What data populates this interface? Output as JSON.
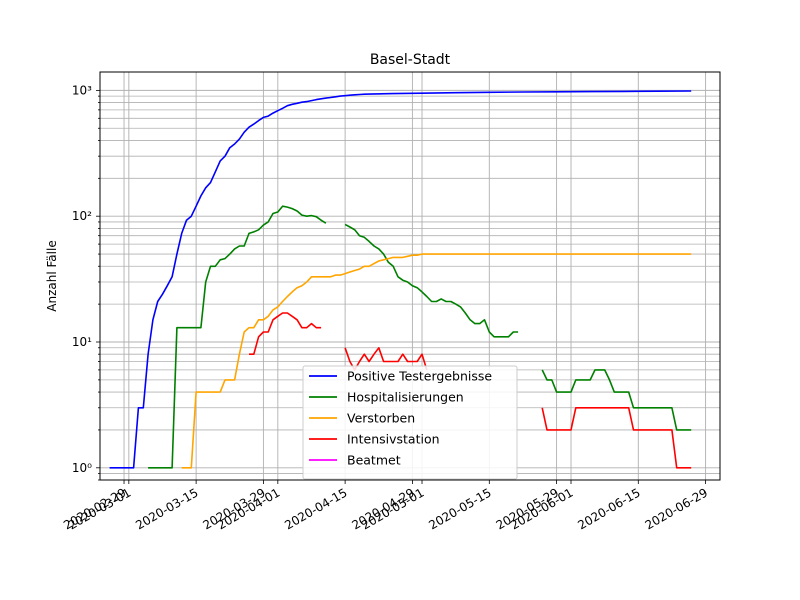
{
  "chart_data": {
    "type": "line",
    "title": "Basel-Stadt",
    "xlabel": "",
    "ylabel": "Anzahl Fälle",
    "yscale": "log",
    "ylim": [
      0.8,
      1400
    ],
    "xlim": [
      "2020-02-24",
      "2020-07-02"
    ],
    "grid": true,
    "legend_position": "lower center",
    "x_ticks": [
      "2020-02-29",
      "2020-03-01",
      "2020-03-15",
      "2020-03-29",
      "2020-04-01",
      "2020-04-15",
      "2020-04-29",
      "2020-05-01",
      "2020-05-15",
      "2020-05-29",
      "2020-06-01",
      "2020-06-15",
      "2020-06-29"
    ],
    "y_ticks": [
      {
        "value": 1,
        "label": "10⁰"
      },
      {
        "value": 10,
        "label": "10¹"
      },
      {
        "value": 100,
        "label": "10²"
      },
      {
        "value": 1000,
        "label": "10³"
      }
    ],
    "series": [
      {
        "name": "Positive Testergebnisse",
        "color": "#0000ff",
        "points": [
          [
            "2020-02-26",
            1
          ],
          [
            "2020-02-27",
            1
          ],
          [
            "2020-02-28",
            1
          ],
          [
            "2020-02-29",
            1
          ],
          [
            "2020-03-01",
            1
          ],
          [
            "2020-03-02",
            1
          ],
          [
            "2020-03-03",
            3
          ],
          [
            "2020-03-04",
            3
          ],
          [
            "2020-03-05",
            8
          ],
          [
            "2020-03-06",
            15
          ],
          [
            "2020-03-07",
            21
          ],
          [
            "2020-03-08",
            24
          ],
          [
            "2020-03-09",
            28
          ],
          [
            "2020-03-10",
            33
          ],
          [
            "2020-03-11",
            50
          ],
          [
            "2020-03-12",
            73
          ],
          [
            "2020-03-13",
            93
          ],
          [
            "2020-03-14",
            100
          ],
          [
            "2020-03-15",
            120
          ],
          [
            "2020-03-16",
            145
          ],
          [
            "2020-03-17",
            168
          ],
          [
            "2020-03-18",
            185
          ],
          [
            "2020-03-19",
            225
          ],
          [
            "2020-03-20",
            275
          ],
          [
            "2020-03-21",
            300
          ],
          [
            "2020-03-22",
            350
          ],
          [
            "2020-03-23",
            375
          ],
          [
            "2020-03-24",
            410
          ],
          [
            "2020-03-25",
            465
          ],
          [
            "2020-03-26",
            510
          ],
          [
            "2020-03-27",
            540
          ],
          [
            "2020-03-28",
            575
          ],
          [
            "2020-03-29",
            610
          ],
          [
            "2020-03-30",
            625
          ],
          [
            "2020-03-31",
            660
          ],
          [
            "2020-04-01",
            690
          ],
          [
            "2020-04-02",
            720
          ],
          [
            "2020-04-03",
            755
          ],
          [
            "2020-04-04",
            775
          ],
          [
            "2020-04-05",
            790
          ],
          [
            "2020-04-06",
            805
          ],
          [
            "2020-04-07",
            815
          ],
          [
            "2020-04-08",
            830
          ],
          [
            "2020-04-09",
            845
          ],
          [
            "2020-04-10",
            858
          ],
          [
            "2020-04-11",
            868
          ],
          [
            "2020-04-12",
            878
          ],
          [
            "2020-04-13",
            890
          ],
          [
            "2020-04-14",
            900
          ],
          [
            "2020-04-15",
            908
          ],
          [
            "2020-04-16",
            915
          ],
          [
            "2020-04-17",
            922
          ],
          [
            "2020-04-18",
            928
          ],
          [
            "2020-04-19",
            932
          ],
          [
            "2020-04-20",
            935
          ],
          [
            "2020-04-25",
            942
          ],
          [
            "2020-05-01",
            950
          ],
          [
            "2020-05-08",
            958
          ],
          [
            "2020-05-15",
            965
          ],
          [
            "2020-05-22",
            970
          ],
          [
            "2020-05-29",
            974
          ],
          [
            "2020-06-05",
            978
          ],
          [
            "2020-06-12",
            982
          ],
          [
            "2020-06-19",
            985
          ],
          [
            "2020-06-26",
            988
          ]
        ]
      },
      {
        "name": "Hospitalisierungen",
        "color": "#008000",
        "points": [
          [
            "2020-03-05",
            1
          ],
          [
            "2020-03-10",
            1
          ],
          [
            "2020-03-11",
            13
          ],
          [
            "2020-03-16",
            13
          ],
          [
            "2020-03-17",
            30
          ],
          [
            "2020-03-18",
            40
          ],
          [
            "2020-03-19",
            40
          ],
          [
            "2020-03-20",
            45
          ],
          [
            "2020-03-21",
            46
          ],
          [
            "2020-03-22",
            50
          ],
          [
            "2020-03-23",
            55
          ],
          [
            "2020-03-24",
            58
          ],
          [
            "2020-03-25",
            58
          ],
          [
            "2020-03-26",
            73
          ],
          [
            "2020-03-27",
            75
          ],
          [
            "2020-03-28",
            78
          ],
          [
            "2020-03-29",
            85
          ],
          [
            "2020-03-30",
            90
          ],
          [
            "2020-03-31",
            105
          ],
          [
            "2020-04-01",
            108
          ],
          [
            "2020-04-02",
            120
          ],
          [
            "2020-04-03",
            118
          ],
          [
            "2020-04-04",
            115
          ],
          [
            "2020-04-05",
            110
          ],
          [
            "2020-04-06",
            102
          ],
          [
            "2020-04-07",
            100
          ],
          [
            "2020-04-08",
            101
          ],
          [
            "2020-04-09",
            99
          ],
          [
            "2020-04-10",
            93
          ],
          [
            "2020-04-11",
            88
          ],
          null,
          [
            "2020-04-15",
            86
          ],
          [
            "2020-04-16",
            82
          ],
          [
            "2020-04-17",
            78
          ],
          [
            "2020-04-18",
            70
          ],
          [
            "2020-04-19",
            68
          ],
          [
            "2020-04-20",
            63
          ],
          [
            "2020-04-21",
            58
          ],
          [
            "2020-04-22",
            55
          ],
          [
            "2020-04-23",
            50
          ],
          [
            "2020-04-24",
            43
          ],
          [
            "2020-04-25",
            40
          ],
          [
            "2020-04-26",
            33
          ],
          [
            "2020-04-27",
            31
          ],
          [
            "2020-04-28",
            30
          ],
          [
            "2020-04-29",
            28
          ],
          [
            "2020-04-30",
            27
          ],
          [
            "2020-05-01",
            25
          ],
          [
            "2020-05-02",
            23
          ],
          [
            "2020-05-03",
            21
          ],
          [
            "2020-05-04",
            21
          ],
          [
            "2020-05-05",
            22
          ],
          [
            "2020-05-06",
            21
          ],
          [
            "2020-05-07",
            21
          ],
          [
            "2020-05-08",
            20
          ],
          [
            "2020-05-09",
            19
          ],
          [
            "2020-05-10",
            17
          ],
          [
            "2020-05-11",
            15
          ],
          [
            "2020-05-12",
            14
          ],
          [
            "2020-05-13",
            14
          ],
          [
            "2020-05-14",
            15
          ],
          [
            "2020-05-15",
            12
          ],
          [
            "2020-05-16",
            11
          ],
          [
            "2020-05-17",
            11
          ],
          [
            "2020-05-18",
            11
          ],
          [
            "2020-05-19",
            11
          ],
          [
            "2020-05-20",
            12
          ],
          [
            "2020-05-21",
            12
          ],
          null,
          [
            "2020-05-26",
            6
          ],
          [
            "2020-05-27",
            5
          ],
          [
            "2020-05-28",
            5
          ],
          [
            "2020-05-29",
            4
          ],
          [
            "2020-05-30",
            4
          ],
          [
            "2020-05-31",
            4
          ],
          [
            "2020-06-01",
            4
          ],
          [
            "2020-06-02",
            5
          ],
          [
            "2020-06-03",
            5
          ],
          [
            "2020-06-04",
            5
          ],
          [
            "2020-06-05",
            5
          ],
          [
            "2020-06-06",
            6
          ],
          [
            "2020-06-07",
            6
          ],
          [
            "2020-06-08",
            6
          ],
          [
            "2020-06-09",
            5
          ],
          [
            "2020-06-10",
            4
          ],
          [
            "2020-06-11",
            4
          ],
          [
            "2020-06-12",
            4
          ],
          [
            "2020-06-13",
            4
          ],
          [
            "2020-06-14",
            3
          ],
          [
            "2020-06-15",
            3
          ],
          [
            "2020-06-16",
            3
          ],
          [
            "2020-06-20",
            3
          ],
          [
            "2020-06-22",
            3
          ],
          [
            "2020-06-23",
            2
          ],
          [
            "2020-06-24",
            2
          ],
          [
            "2020-06-25",
            2
          ],
          [
            "2020-06-26",
            2
          ]
        ]
      },
      {
        "name": "Verstorben",
        "color": "#ffa500",
        "points": [
          [
            "2020-03-12",
            1
          ],
          [
            "2020-03-14",
            1
          ],
          [
            "2020-03-15",
            4
          ],
          [
            "2020-03-20",
            4
          ],
          [
            "2020-03-21",
            5
          ],
          [
            "2020-03-23",
            5
          ],
          [
            "2020-03-24",
            8
          ],
          [
            "2020-03-25",
            12
          ],
          [
            "2020-03-26",
            13
          ],
          [
            "2020-03-27",
            13
          ],
          [
            "2020-03-28",
            15
          ],
          [
            "2020-03-29",
            15
          ],
          [
            "2020-03-30",
            16
          ],
          [
            "2020-03-31",
            18
          ],
          [
            "2020-04-01",
            19
          ],
          [
            "2020-04-02",
            21
          ],
          [
            "2020-04-03",
            23
          ],
          [
            "2020-04-04",
            25
          ],
          [
            "2020-04-05",
            27
          ],
          [
            "2020-04-06",
            28
          ],
          [
            "2020-04-07",
            30
          ],
          [
            "2020-04-08",
            33
          ],
          [
            "2020-04-10",
            33
          ],
          [
            "2020-04-12",
            33
          ],
          [
            "2020-04-13",
            34
          ],
          [
            "2020-04-14",
            34
          ],
          [
            "2020-04-15",
            35
          ],
          [
            "2020-04-16",
            36
          ],
          [
            "2020-04-17",
            37
          ],
          [
            "2020-04-18",
            38
          ],
          [
            "2020-04-19",
            40
          ],
          [
            "2020-04-20",
            40
          ],
          [
            "2020-04-21",
            42
          ],
          [
            "2020-04-22",
            44
          ],
          [
            "2020-04-23",
            45
          ],
          [
            "2020-04-24",
            46
          ],
          [
            "2020-04-25",
            47
          ],
          [
            "2020-04-26",
            47
          ],
          [
            "2020-04-27",
            47
          ],
          [
            "2020-04-28",
            48
          ],
          [
            "2020-04-29",
            49
          ],
          [
            "2020-04-30",
            49
          ],
          [
            "2020-05-01",
            50
          ],
          [
            "2020-05-10",
            50
          ],
          [
            "2020-05-20",
            50
          ],
          [
            "2020-05-30",
            50
          ],
          [
            "2020-06-10",
            50
          ],
          [
            "2020-06-20",
            50
          ],
          [
            "2020-06-26",
            50
          ]
        ]
      },
      {
        "name": "Intensivstation",
        "color": "#ff0000",
        "points": [
          [
            "2020-03-26",
            8
          ],
          [
            "2020-03-27",
            8
          ],
          [
            "2020-03-28",
            11
          ],
          [
            "2020-03-29",
            12
          ],
          [
            "2020-03-30",
            12
          ],
          [
            "2020-03-31",
            15
          ],
          [
            "2020-04-01",
            16
          ],
          [
            "2020-04-02",
            17
          ],
          [
            "2020-04-03",
            17
          ],
          [
            "2020-04-04",
            16
          ],
          [
            "2020-04-05",
            15
          ],
          [
            "2020-04-06",
            13
          ],
          [
            "2020-04-07",
            13
          ],
          [
            "2020-04-08",
            14
          ],
          [
            "2020-04-09",
            13
          ],
          [
            "2020-04-10",
            13
          ],
          null,
          [
            "2020-04-15",
            9
          ],
          [
            "2020-04-16",
            7
          ],
          [
            "2020-04-17",
            6
          ],
          [
            "2020-04-18",
            7
          ],
          [
            "2020-04-19",
            8
          ],
          [
            "2020-04-20",
            7
          ],
          [
            "2020-04-21",
            8
          ],
          [
            "2020-04-22",
            9
          ],
          [
            "2020-04-23",
            7
          ],
          [
            "2020-04-24",
            7
          ],
          [
            "2020-04-25",
            7
          ],
          [
            "2020-04-26",
            7
          ],
          [
            "2020-04-27",
            8
          ],
          [
            "2020-04-28",
            7
          ],
          [
            "2020-04-29",
            7
          ],
          [
            "2020-04-30",
            7
          ],
          [
            "2020-05-01",
            8
          ],
          [
            "2020-05-02",
            6
          ],
          null,
          [
            "2020-05-26",
            3
          ],
          [
            "2020-05-27",
            2
          ],
          [
            "2020-05-31",
            2
          ],
          [
            "2020-06-01",
            2
          ],
          [
            "2020-06-02",
            3
          ],
          [
            "2020-06-08",
            3
          ],
          [
            "2020-06-12",
            3
          ],
          [
            "2020-06-13",
            3
          ],
          [
            "2020-06-14",
            2
          ],
          [
            "2020-06-20",
            2
          ],
          [
            "2020-06-22",
            2
          ],
          [
            "2020-06-23",
            1
          ],
          [
            "2020-06-26",
            1
          ]
        ]
      },
      {
        "name": "Beatmet",
        "color": "#ff00ff",
        "points": []
      }
    ]
  }
}
